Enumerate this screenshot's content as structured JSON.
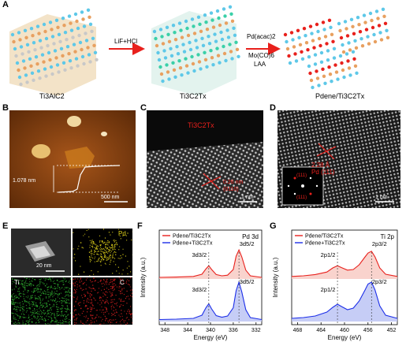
{
  "panels": {
    "A": "A",
    "B": "B",
    "C": "C",
    "D": "D",
    "E": "E",
    "F": "F",
    "G": "G"
  },
  "panel_a": {
    "stage1": "Ti3AlC2",
    "step1": "LiF+HCl",
    "stage2": "Ti3C2Tx",
    "step2_line1": "Pd(acac)2",
    "step2_line2": "Mo(CO)6",
    "step2_line3": "LAA",
    "stage3": "Pdene/Ti3C2Tx"
  },
  "panel_b": {
    "height_label": "1.078 nm",
    "scale": "500 nm"
  },
  "panel_c": {
    "label": "Ti3C2Tx",
    "spacing": "0.26 nm",
    "plane": "(0110)",
    "scale": "1 nm"
  },
  "panel_d": {
    "spacing": "2.28 Å",
    "plane": "Pd (111)",
    "fft_top": "(111)",
    "fft_bottom": "(111)",
    "scale": "1 nm"
  },
  "panel_e": {
    "scale": "20 nm",
    "maps": [
      "Pd",
      "Ti",
      "C"
    ]
  },
  "colors": {
    "pdene": "#e8201c",
    "mixture": "#1c2ee8",
    "pd_map": "#e0d21a",
    "ti_map": "#2ea82e",
    "c_map": "#d62020"
  },
  "chart_data": [
    {
      "type": "line",
      "panel": "F",
      "title": "Pd 3d",
      "xlabel": "Energy (eV)",
      "ylabel": "Intensity (a.u.)",
      "xlim": [
        349,
        331
      ],
      "xticks": [
        348,
        344,
        340,
        336,
        332
      ],
      "legend": [
        "Pdene/Ti3C2Tx",
        "Pdene+Ti3C2Tx"
      ],
      "legend_position": "top-left",
      "peak_lines_x": [
        340.3,
        335.0
      ],
      "peak_labels": [
        "3d3/2",
        "3d5/2",
        "3d3/2",
        "3d5/2"
      ],
      "series": [
        {
          "name": "Pdene/Ti3C2Tx",
          "x": [
            349,
            346,
            343,
            341.5,
            340.8,
            340.3,
            339.8,
            339,
            338,
            337,
            336,
            335.5,
            335,
            334.5,
            333.8,
            333,
            331
          ],
          "y": [
            0.05,
            0.06,
            0.08,
            0.15,
            0.32,
            0.42,
            0.3,
            0.14,
            0.1,
            0.12,
            0.3,
            0.72,
            0.92,
            0.7,
            0.28,
            0.1,
            0.05
          ]
        },
        {
          "name": "Pdene+Ti3C2Tx",
          "x": [
            349,
            346,
            343,
            341.5,
            340.8,
            340.3,
            339.8,
            339,
            338,
            337,
            336,
            335.5,
            335,
            334.5,
            333.8,
            333,
            331
          ],
          "y": [
            0.05,
            0.06,
            0.08,
            0.16,
            0.35,
            0.45,
            0.32,
            0.15,
            0.11,
            0.14,
            0.35,
            0.78,
            1.0,
            0.75,
            0.3,
            0.1,
            0.05
          ]
        }
      ]
    },
    {
      "type": "line",
      "panel": "G",
      "title": "Ti 2p",
      "xlabel": "Energy (eV)",
      "ylabel": "Intensity (a.u.)",
      "xlim": [
        469,
        451
      ],
      "xticks": [
        468,
        464,
        460,
        456,
        452
      ],
      "legend": [
        "Pdene/Ti3C2Tx",
        "Pdene+Ti3C2Tx"
      ],
      "legend_position": "top-left",
      "peak_lines_x": [
        461.2,
        455.4
      ],
      "peak_labels": [
        "2p1/2",
        "2p3/2",
        "2p1/2",
        "2p3/2"
      ],
      "series": [
        {
          "name": "Pdene/Ti3C2Tx",
          "x": [
            469,
            467,
            465,
            463,
            462,
            461.2,
            460.5,
            459.5,
            458.5,
            457.5,
            456.5,
            456,
            455.4,
            454.8,
            454,
            453,
            451
          ],
          "y": [
            0.08,
            0.1,
            0.14,
            0.22,
            0.35,
            0.42,
            0.36,
            0.28,
            0.3,
            0.45,
            0.7,
            0.82,
            0.88,
            0.7,
            0.35,
            0.15,
            0.08
          ]
        },
        {
          "name": "Pdene+Ti3C2Tx",
          "x": [
            469,
            467,
            465,
            463,
            462,
            461.2,
            460.5,
            459.5,
            458.5,
            457.5,
            456.5,
            456,
            455.4,
            454.8,
            454,
            453,
            451
          ],
          "y": [
            0.08,
            0.1,
            0.14,
            0.24,
            0.36,
            0.44,
            0.38,
            0.3,
            0.34,
            0.52,
            0.8,
            0.95,
            1.0,
            0.8,
            0.4,
            0.16,
            0.08
          ]
        }
      ]
    }
  ]
}
